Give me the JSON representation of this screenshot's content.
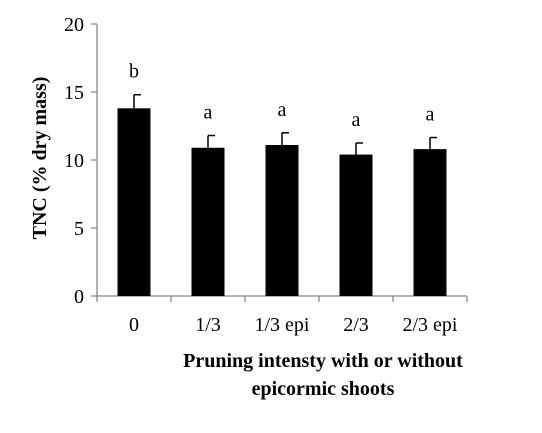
{
  "chart_data": {
    "type": "bar",
    "categories": [
      "0",
      "1/3",
      "1/3 epi",
      "2/3",
      "2/3 epi"
    ],
    "values": [
      13.8,
      10.9,
      11.1,
      10.4,
      10.8
    ],
    "errors": [
      1.0,
      0.9,
      0.9,
      0.85,
      0.85
    ],
    "significance": [
      "b",
      "a",
      "a",
      "a",
      "a"
    ],
    "ylabel": "TNC (% dry mass)",
    "xlabel_lines": [
      "Pruning intensty with or without",
      "epicormic shoots"
    ],
    "ylim": [
      0,
      20
    ],
    "yticks": [
      0,
      5,
      10,
      15,
      20
    ],
    "grid": false,
    "bar_color": "#000000"
  }
}
